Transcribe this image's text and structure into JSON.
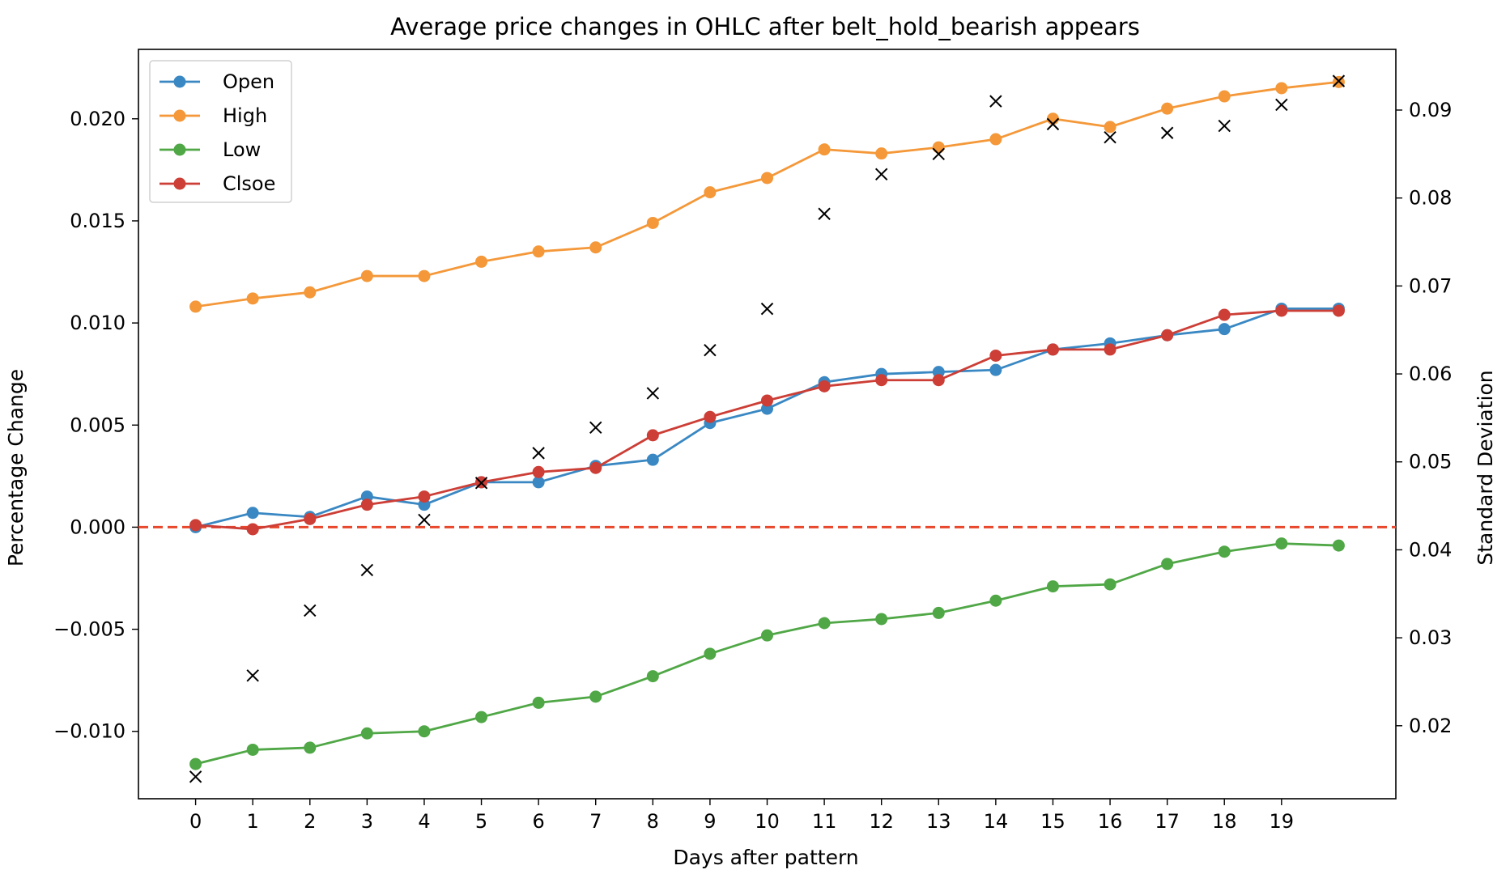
{
  "chart_data": {
    "type": "line",
    "title": "Average price changes in OHLC after belt_hold_bearish appears",
    "xlabel": "Days after pattern",
    "ylabel": "Percentage Change",
    "y2label": "Standard Deviation",
    "x": [
      0,
      1,
      2,
      3,
      4,
      5,
      6,
      7,
      8,
      9,
      10,
      11,
      12,
      13,
      14,
      15,
      16,
      17,
      18,
      19,
      20
    ],
    "x_tick_labels": [
      "0",
      "1",
      "2",
      "3",
      "4",
      "5",
      "6",
      "7",
      "8",
      "9",
      "10",
      "11",
      "12",
      "13",
      "14",
      "15",
      "16",
      "17",
      "18",
      "19"
    ],
    "ylim": [
      -0.0133,
      0.0234
    ],
    "y_ticks": [
      -0.01,
      -0.005,
      0.0,
      0.005,
      0.01,
      0.015,
      0.02
    ],
    "y_tick_labels": [
      "−0.010",
      "−0.005",
      "0.000",
      "0.005",
      "0.010",
      "0.015",
      "0.020"
    ],
    "y2lim": [
      0.0117,
      0.0969
    ],
    "y2_ticks": [
      0.02,
      0.03,
      0.04,
      0.05,
      0.06,
      0.07,
      0.08,
      0.09
    ],
    "y2_tick_labels": [
      "0.02",
      "0.03",
      "0.04",
      "0.05",
      "0.06",
      "0.07",
      "0.08",
      "0.09"
    ],
    "grid": false,
    "legend_position": "top-left",
    "reference_line": {
      "y": 0.0,
      "color": "#e8472b",
      "style": "dashed"
    },
    "series": [
      {
        "name": "Open",
        "color": "#3a88c3",
        "values": [
          0.0,
          0.0007,
          0.0005,
          0.0015,
          0.0011,
          0.0022,
          0.0022,
          0.003,
          0.0033,
          0.0051,
          0.0058,
          0.0071,
          0.0075,
          0.0076,
          0.0077,
          0.0087,
          0.009,
          0.0094,
          0.0097,
          0.0107,
          0.0107
        ]
      },
      {
        "name": "High",
        "color": "#f49839",
        "values": [
          0.0108,
          0.0112,
          0.0115,
          0.0123,
          0.0123,
          0.013,
          0.0135,
          0.0137,
          0.0149,
          0.0164,
          0.0171,
          0.0185,
          0.0183,
          0.0186,
          0.019,
          0.02,
          0.0196,
          0.0205,
          0.0211,
          0.0215,
          0.0218
        ]
      },
      {
        "name": "Low",
        "color": "#50a746",
        "values": [
          -0.0116,
          -0.0109,
          -0.0108,
          -0.0101,
          -0.01,
          -0.0093,
          -0.0086,
          -0.0083,
          -0.0073,
          -0.0062,
          -0.0053,
          -0.0047,
          -0.0045,
          -0.0042,
          -0.0036,
          -0.0029,
          -0.0028,
          -0.0018,
          -0.0012,
          -0.0008,
          -0.0009
        ]
      },
      {
        "name": "Clsoe",
        "color": "#cc3e36",
        "values": [
          0.0001,
          -0.0001,
          0.0004,
          0.0011,
          0.0015,
          0.0022,
          0.0027,
          0.0029,
          0.0045,
          0.0054,
          0.0062,
          0.0069,
          0.0072,
          0.0072,
          0.0084,
          0.0087,
          0.0087,
          0.0094,
          0.0104,
          0.0106,
          0.0106
        ]
      }
    ],
    "std_series": {
      "axis": "right",
      "marker": "x",
      "color": "#000000",
      "values": [
        0.0142,
        0.0257,
        0.0331,
        0.0377,
        0.0434,
        0.0476,
        0.051,
        0.0539,
        0.0578,
        0.0627,
        0.0674,
        0.0782,
        0.0827,
        0.085,
        0.091,
        0.0884,
        0.0869,
        0.0874,
        0.0882,
        0.0906,
        0.0933
      ]
    }
  }
}
